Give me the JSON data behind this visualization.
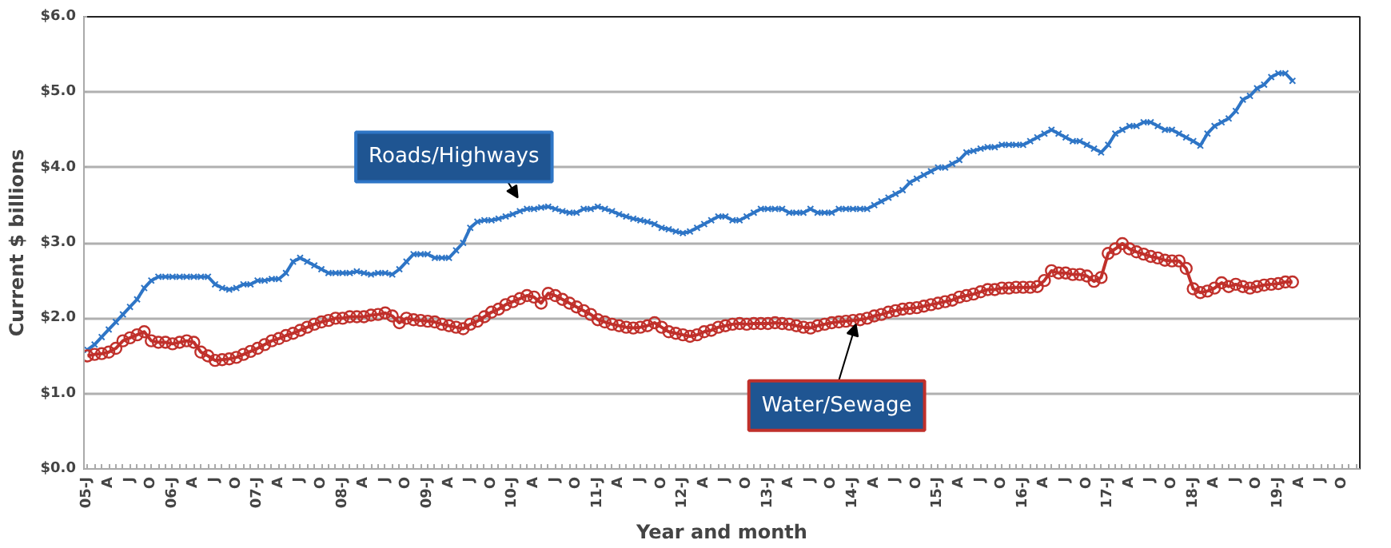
{
  "chart_data": {
    "type": "line",
    "xlabel": "Year and month",
    "ylabel": "Current $ billions",
    "categories": [
      "05-J",
      null,
      null,
      "A",
      null,
      null,
      "J",
      null,
      null,
      "O",
      null,
      null,
      "06-J",
      null,
      null,
      "A",
      null,
      null,
      "J",
      null,
      null,
      "O",
      null,
      null,
      "07-J",
      null,
      null,
      "A",
      null,
      null,
      "J",
      null,
      null,
      "O",
      null,
      null,
      "08-J",
      null,
      null,
      "A",
      null,
      null,
      "J",
      null,
      null,
      "O",
      null,
      null,
      "09-J",
      null,
      null,
      "A",
      null,
      null,
      "J",
      null,
      null,
      "O",
      null,
      null,
      "10-J",
      null,
      null,
      "A",
      null,
      null,
      "J",
      null,
      null,
      "O",
      null,
      null,
      "11-J",
      null,
      null,
      "A",
      null,
      null,
      "J",
      null,
      null,
      "O",
      null,
      null,
      "12-J",
      null,
      null,
      "A",
      null,
      null,
      "J",
      null,
      null,
      "O",
      null,
      null,
      "13-J",
      null,
      null,
      "A",
      null,
      null,
      "J",
      null,
      null,
      "O",
      null,
      null,
      "14-J",
      null,
      null,
      "A",
      null,
      null,
      "J",
      null,
      null,
      "O",
      null,
      null,
      "15-J",
      null,
      null,
      "A",
      null,
      null,
      "J",
      null,
      null,
      "O",
      null,
      null,
      "16-J",
      null,
      null,
      "A",
      null,
      null,
      "J",
      null,
      null,
      "O",
      null,
      null,
      "17-J",
      null,
      null,
      "A",
      null,
      null,
      "J",
      null,
      null,
      "O",
      null,
      null,
      "18-J",
      null,
      null,
      "A",
      null,
      null,
      "J",
      null,
      null,
      "O",
      null,
      null,
      "19-J",
      null,
      null,
      "A",
      null,
      null,
      "J",
      null,
      null,
      "O",
      null,
      null
    ],
    "series": [
      {
        "name": "Roads/Highways",
        "color": "#2e75c6",
        "marker": "cross",
        "values": [
          1.58,
          1.65,
          1.75,
          1.85,
          1.95,
          2.05,
          2.15,
          2.25,
          2.4,
          2.5,
          2.55,
          2.55,
          2.55,
          2.55,
          2.55,
          2.55,
          2.55,
          2.55,
          2.45,
          2.4,
          2.38,
          2.4,
          2.45,
          2.45,
          2.5,
          2.5,
          2.52,
          2.52,
          2.6,
          2.75,
          2.8,
          2.75,
          2.7,
          2.65,
          2.6,
          2.6,
          2.6,
          2.6,
          2.62,
          2.6,
          2.58,
          2.6,
          2.6,
          2.58,
          2.65,
          2.75,
          2.85,
          2.85,
          2.85,
          2.8,
          2.8,
          2.8,
          2.9,
          3.0,
          3.2,
          3.28,
          3.3,
          3.3,
          3.32,
          3.35,
          3.38,
          3.42,
          3.45,
          3.45,
          3.47,
          3.48,
          3.45,
          3.42,
          3.4,
          3.4,
          3.45,
          3.45,
          3.48,
          3.45,
          3.42,
          3.38,
          3.35,
          3.32,
          3.3,
          3.28,
          3.25,
          3.2,
          3.18,
          3.15,
          3.13,
          3.15,
          3.2,
          3.25,
          3.3,
          3.35,
          3.35,
          3.3,
          3.3,
          3.35,
          3.4,
          3.45,
          3.45,
          3.45,
          3.45,
          3.4,
          3.4,
          3.4,
          3.45,
          3.4,
          3.4,
          3.4,
          3.45,
          3.45,
          3.45,
          3.45,
          3.45,
          3.5,
          3.55,
          3.6,
          3.65,
          3.7,
          3.8,
          3.85,
          3.9,
          3.95,
          4.0,
          4.0,
          4.05,
          4.1,
          4.2,
          4.22,
          4.25,
          4.27,
          4.27,
          4.3,
          4.3,
          4.3,
          4.3,
          4.35,
          4.4,
          4.45,
          4.5,
          4.45,
          4.4,
          4.35,
          4.35,
          4.3,
          4.25,
          4.2,
          4.3,
          4.45,
          4.5,
          4.55,
          4.55,
          4.6,
          4.6,
          4.55,
          4.5,
          4.5,
          4.45,
          4.4,
          4.35,
          4.29,
          4.45,
          4.55,
          4.6,
          4.65,
          4.75,
          4.9,
          4.95,
          5.05,
          5.1,
          5.2,
          5.25,
          5.25,
          5.15,
          null,
          null,
          null,
          null,
          null,
          null,
          null,
          null,
          null
        ]
      },
      {
        "name": "Water/Sewage",
        "color": "#c0302b",
        "marker": "circle",
        "values": [
          1.5,
          1.52,
          1.53,
          1.55,
          1.6,
          1.7,
          1.74,
          1.78,
          1.82,
          1.7,
          1.68,
          1.68,
          1.66,
          1.68,
          1.7,
          1.68,
          1.55,
          1.5,
          1.44,
          1.45,
          1.46,
          1.48,
          1.52,
          1.56,
          1.6,
          1.65,
          1.7,
          1.73,
          1.77,
          1.8,
          1.84,
          1.88,
          1.92,
          1.95,
          1.97,
          2.0,
          2.0,
          2.02,
          2.02,
          2.02,
          2.04,
          2.05,
          2.07,
          2.03,
          1.94,
          2.0,
          1.98,
          1.97,
          1.96,
          1.95,
          1.92,
          1.9,
          1.88,
          1.86,
          1.92,
          1.96,
          2.02,
          2.08,
          2.12,
          2.18,
          2.22,
          2.26,
          2.3,
          2.28,
          2.2,
          2.33,
          2.3,
          2.25,
          2.2,
          2.15,
          2.1,
          2.05,
          1.98,
          1.95,
          1.92,
          1.9,
          1.88,
          1.87,
          1.88,
          1.9,
          1.94,
          1.88,
          1.82,
          1.8,
          1.78,
          1.76,
          1.78,
          1.82,
          1.84,
          1.88,
          1.9,
          1.92,
          1.93,
          1.92,
          1.93,
          1.93,
          1.93,
          1.94,
          1.93,
          1.92,
          1.9,
          1.88,
          1.87,
          1.9,
          1.92,
          1.94,
          1.95,
          1.96,
          1.97,
          1.98,
          2.0,
          2.03,
          2.05,
          2.08,
          2.1,
          2.12,
          2.13,
          2.14,
          2.16,
          2.18,
          2.2,
          2.22,
          2.24,
          2.28,
          2.3,
          2.32,
          2.35,
          2.38,
          2.38,
          2.4,
          2.4,
          2.41,
          2.41,
          2.41,
          2.42,
          2.5,
          2.63,
          2.6,
          2.6,
          2.58,
          2.58,
          2.56,
          2.49,
          2.54,
          2.86,
          2.92,
          2.99,
          2.92,
          2.88,
          2.85,
          2.82,
          2.8,
          2.77,
          2.76,
          2.76,
          2.66,
          2.39,
          2.34,
          2.36,
          2.4,
          2.47,
          2.42,
          2.45,
          2.42,
          2.4,
          2.42,
          2.44,
          2.45,
          2.46,
          2.48,
          2.48,
          null,
          null,
          null,
          null,
          null,
          null,
          null,
          null,
          null
        ]
      }
    ],
    "ylim": [
      0,
      6
    ],
    "yticks": [
      {
        "value": 0,
        "label": "$0.0"
      },
      {
        "value": 1,
        "label": "$1.0"
      },
      {
        "value": 2,
        "label": "$2.0"
      },
      {
        "value": 3,
        "label": "$3.0"
      },
      {
        "value": 4,
        "label": "$4.0"
      },
      {
        "value": 5,
        "label": "$5.0"
      },
      {
        "value": 6,
        "label": "$6.0"
      }
    ],
    "grid": "y"
  }
}
